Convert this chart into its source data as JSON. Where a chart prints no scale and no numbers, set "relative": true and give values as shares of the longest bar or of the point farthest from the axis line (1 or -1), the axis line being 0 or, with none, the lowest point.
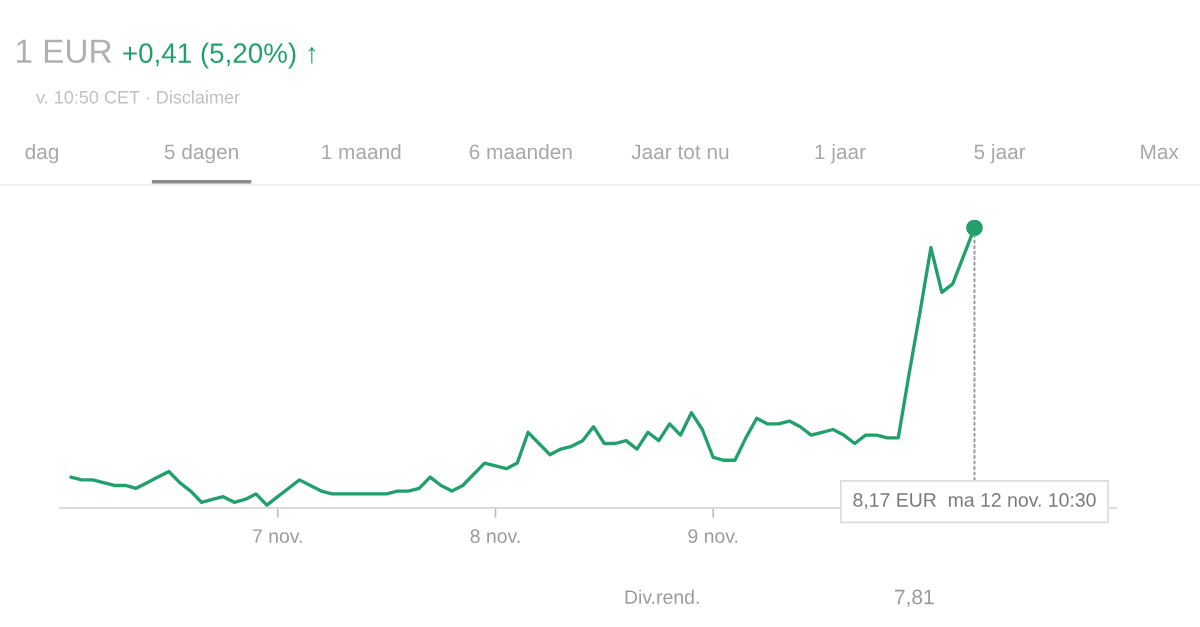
{
  "chart_data": {
    "type": "line",
    "title": "1 EUR +0,41 (5,20%) ↑",
    "subtitle": "v. 10:50 CET · Disclaimer",
    "categories": [
      null,
      null,
      null,
      null,
      null,
      null,
      null,
      null,
      null,
      null,
      null,
      null,
      null,
      null,
      null,
      null,
      null,
      null,
      null,
      "7 nov.",
      null,
      null,
      null,
      null,
      null,
      null,
      null,
      null,
      null,
      null,
      null,
      null,
      null,
      null,
      null,
      null,
      null,
      null,
      null,
      "8 nov.",
      null,
      null,
      null,
      null,
      null,
      null,
      null,
      null,
      null,
      null,
      null,
      null,
      null,
      null,
      null,
      null,
      null,
      null,
      null,
      "9 nov.",
      null,
      null,
      null,
      null,
      null,
      null,
      null,
      null,
      null,
      null,
      null,
      null,
      null,
      null,
      null,
      null,
      null,
      null,
      null,
      null,
      null,
      null,
      null,
      null,
      null,
      null,
      null,
      null,
      null,
      null,
      null,
      null,
      null,
      null,
      null,
      null
    ],
    "series": [
      {
        "color": "#22a06b",
        "values": [
          0.11,
          0.1,
          0.1,
          0.09,
          0.08,
          0.08,
          0.07,
          0.09,
          0.11,
          0.13,
          0.09,
          0.06,
          0.02,
          0.03,
          0.04,
          0.02,
          0.03,
          0.05,
          0.01,
          0.04,
          0.07,
          0.1,
          0.08,
          0.06,
          0.05,
          0.05,
          0.05,
          0.05,
          0.05,
          0.05,
          0.06,
          0.06,
          0.07,
          0.11,
          0.08,
          0.06,
          0.08,
          0.12,
          0.16,
          0.15,
          0.14,
          0.16,
          0.27,
          0.23,
          0.19,
          0.21,
          0.22,
          0.24,
          0.29,
          0.23,
          0.23,
          0.24,
          0.21,
          0.27,
          0.24,
          0.3,
          0.26,
          0.34,
          0.28,
          0.18,
          0.17,
          0.17,
          0.25,
          0.32,
          0.3,
          0.3,
          0.31,
          0.29,
          0.26,
          0.27,
          0.28,
          0.26,
          0.23,
          0.26,
          0.26,
          0.25,
          0.25,
          0.48,
          0.7,
          0.93,
          0.77,
          0.8,
          0.9,
          1.0,
          null,
          null,
          null,
          null,
          null,
          null,
          null,
          null,
          null,
          null,
          null,
          null
        ]
      }
    ],
    "relative": true,
    "tick_labels": "x",
    "annotations": [
      "dag",
      "5 dagen",
      "1 maand",
      "6 maanden",
      "Jaar tot nu",
      "1 jaar",
      "5 jaar",
      "Max",
      "Div.rend.",
      "7,81",
      {
        "text": "8,17 EUR  ma 12 nov. 10:30",
        "y": 1.0
      }
    ]
  }
}
